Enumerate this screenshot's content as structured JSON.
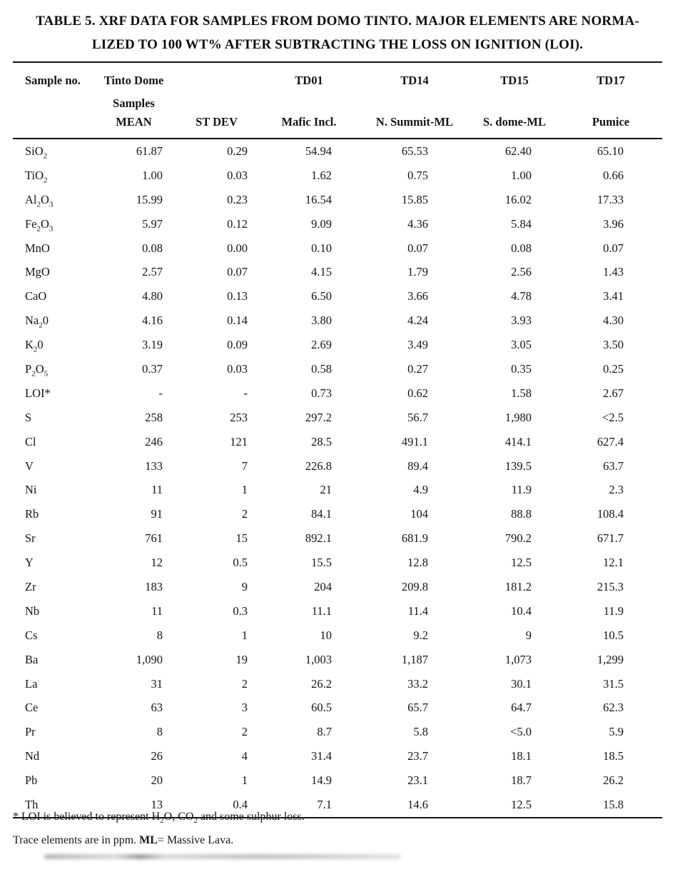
{
  "page": {
    "background_color": "#ffffff",
    "text_color": "#141414"
  },
  "title": {
    "line1": "TABLE 5. XRF DATA FOR SAMPLES FROM DOMO TINTO. MAJOR ELEMENTS ARE NORMA-",
    "line2": "LIZED TO 100 WT% AFTER SUBTRACTING THE LOSS ON IGNITION (LOI)."
  },
  "table": {
    "header_row1": [
      "Sample no.",
      "Tinto Dome Samples",
      "",
      "TD01",
      "TD14",
      "TD15",
      "TD17"
    ],
    "header_row2": [
      "",
      "MEAN",
      "ST DEV",
      "Mafic Incl.",
      "N. Summit-ML",
      "S. dome-ML",
      "Pumice"
    ],
    "rows": [
      {
        "label": [
          [
            "t",
            "SiO"
          ],
          [
            "s",
            "2"
          ]
        ],
        "values": [
          "61.87",
          "0.29",
          "54.94",
          "65.53",
          "62.40",
          "65.10"
        ]
      },
      {
        "label": [
          [
            "t",
            "TiO"
          ],
          [
            "s",
            "2"
          ]
        ],
        "values": [
          "1.00",
          "0.03",
          "1.62",
          "0.75",
          "1.00",
          "0.66"
        ]
      },
      {
        "label": [
          [
            "t",
            "Al"
          ],
          [
            "s",
            "2"
          ],
          [
            "t",
            "O"
          ],
          [
            "s",
            "3"
          ]
        ],
        "values": [
          "15.99",
          "0.23",
          "16.54",
          "15.85",
          "16.02",
          "17.33"
        ]
      },
      {
        "label": [
          [
            "t",
            "Fe"
          ],
          [
            "s",
            "2"
          ],
          [
            "t",
            "O"
          ],
          [
            "s",
            "3"
          ]
        ],
        "values": [
          "5.97",
          "0.12",
          "9.09",
          "4.36",
          "5.84",
          "3.96"
        ]
      },
      {
        "label": [
          [
            "t",
            "MnO"
          ]
        ],
        "values": [
          "0.08",
          "0.00",
          "0.10",
          "0.07",
          "0.08",
          "0.07"
        ]
      },
      {
        "label": [
          [
            "t",
            "MgO"
          ]
        ],
        "values": [
          "2.57",
          "0.07",
          "4.15",
          "1.79",
          "2.56",
          "1.43"
        ]
      },
      {
        "label": [
          [
            "t",
            "CaO"
          ]
        ],
        "values": [
          "4.80",
          "0.13",
          "6.50",
          "3.66",
          "4.78",
          "3.41"
        ]
      },
      {
        "label": [
          [
            "t",
            "Na"
          ],
          [
            "s",
            "2"
          ],
          [
            "t",
            "0"
          ]
        ],
        "values": [
          "4.16",
          "0.14",
          "3.80",
          "4.24",
          "3.93",
          "4.30"
        ]
      },
      {
        "label": [
          [
            "t",
            "K"
          ],
          [
            "s",
            "2"
          ],
          [
            "t",
            "0"
          ]
        ],
        "values": [
          "3.19",
          "0.09",
          "2.69",
          "3.49",
          "3.05",
          "3.50"
        ]
      },
      {
        "label": [
          [
            "t",
            "P"
          ],
          [
            "s",
            "2"
          ],
          [
            "t",
            "O"
          ],
          [
            "s",
            "5"
          ]
        ],
        "values": [
          "0.37",
          "0.03",
          "0.58",
          "0.27",
          "0.35",
          "0.25"
        ]
      },
      {
        "label": [
          [
            "t",
            "LOI*"
          ]
        ],
        "values": [
          "-",
          "-",
          "0.73",
          "0.62",
          "1.58",
          "2.67"
        ]
      },
      {
        "label": [
          [
            "t",
            "S"
          ]
        ],
        "values": [
          "258",
          "253",
          "297.2",
          "56.7",
          "1,980",
          "<2.5"
        ]
      },
      {
        "label": [
          [
            "t",
            "Cl"
          ]
        ],
        "values": [
          "246",
          "121",
          "28.5",
          "491.1",
          "414.1",
          "627.4"
        ]
      },
      {
        "label": [
          [
            "t",
            "V"
          ]
        ],
        "values": [
          "133",
          "7",
          "226.8",
          "89.4",
          "139.5",
          "63.7"
        ]
      },
      {
        "label": [
          [
            "t",
            "Ni"
          ]
        ],
        "values": [
          "11",
          "1",
          "21",
          "4.9",
          "11.9",
          "2.3"
        ]
      },
      {
        "label": [
          [
            "t",
            "Rb"
          ]
        ],
        "values": [
          "91",
          "2",
          "84.1",
          "104",
          "88.8",
          "108.4"
        ]
      },
      {
        "label": [
          [
            "t",
            "Sr"
          ]
        ],
        "values": [
          "761",
          "15",
          "892.1",
          "681.9",
          "790.2",
          "671.7"
        ]
      },
      {
        "label": [
          [
            "t",
            "Y"
          ]
        ],
        "values": [
          "12",
          "0.5",
          "15.5",
          "12.8",
          "12.5",
          "12.1"
        ]
      },
      {
        "label": [
          [
            "t",
            "Zr"
          ]
        ],
        "values": [
          "183",
          "9",
          "204",
          "209.8",
          "181.2",
          "215.3"
        ]
      },
      {
        "label": [
          [
            "t",
            "Nb"
          ]
        ],
        "values": [
          "11",
          "0.3",
          "11.1",
          "11.4",
          "10.4",
          "11.9"
        ]
      },
      {
        "label": [
          [
            "t",
            "Cs"
          ]
        ],
        "values": [
          "8",
          "1",
          "10",
          "9.2",
          "9",
          "10.5"
        ]
      },
      {
        "label": [
          [
            "t",
            "Ba"
          ]
        ],
        "values": [
          "1,090",
          "19",
          "1,003",
          "1,187",
          "1,073",
          "1,299"
        ]
      },
      {
        "label": [
          [
            "t",
            "La"
          ]
        ],
        "values": [
          "31",
          "2",
          "26.2",
          "33.2",
          "30.1",
          "31.5"
        ]
      },
      {
        "label": [
          [
            "t",
            "Ce"
          ]
        ],
        "values": [
          "63",
          "3",
          "60.5",
          "65.7",
          "64.7",
          "62.3"
        ]
      },
      {
        "label": [
          [
            "t",
            "Pr"
          ]
        ],
        "values": [
          "8",
          "2",
          "8.7",
          "5.8",
          "<5.0",
          "5.9"
        ]
      },
      {
        "label": [
          [
            "t",
            "Nd"
          ]
        ],
        "values": [
          "26",
          "4",
          "31.4",
          "23.7",
          "18.1",
          "18.5"
        ]
      },
      {
        "label": [
          [
            "t",
            "Pb"
          ]
        ],
        "values": [
          "20",
          "1",
          "14.9",
          "23.1",
          "18.7",
          "26.2"
        ]
      },
      {
        "label": [
          [
            "t",
            "Th"
          ]
        ],
        "values": [
          "13",
          "0.4",
          "7.1",
          "14.6",
          "12.5",
          "15.8"
        ]
      }
    ]
  },
  "footnotes": {
    "loi": [
      [
        "t",
        "* LOI  is believed to represent H"
      ],
      [
        "s",
        "2"
      ],
      [
        "t",
        "O, CO"
      ],
      [
        "s",
        "2"
      ],
      [
        "t",
        " and some sulphur loss."
      ]
    ],
    "trace": [
      [
        "t",
        "Trace elements are in ppm. "
      ],
      [
        "b",
        "ML"
      ],
      [
        "t",
        "= Massive Lava."
      ]
    ]
  }
}
